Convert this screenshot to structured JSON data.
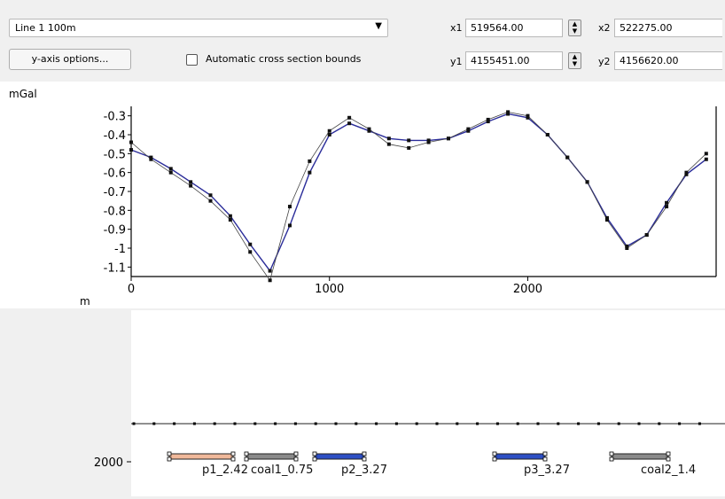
{
  "line_select": {
    "value": "Line 1 100m"
  },
  "yaxis_button": {
    "label": "y-axis options..."
  },
  "auto_bounds": {
    "label": "Automatic cross section bounds",
    "checked": false
  },
  "coords": {
    "x1": {
      "label": "x1",
      "value": "519564.00"
    },
    "x2": {
      "label": "x2",
      "value": "522275.00"
    },
    "y1": {
      "label": "y1",
      "value": "4155451.00"
    },
    "y2": {
      "label": "y2",
      "value": "4156620.00"
    }
  },
  "gravity_plot": {
    "ylabel": "mGal",
    "xlabel": "m",
    "ytick_labels": [
      "-0.3",
      "-0.4",
      "-0.5",
      "-0.6",
      "-0.7",
      "-0.8",
      "-0.9",
      "-1",
      "-1.1"
    ],
    "xtick_labels": [
      "0",
      "1000",
      "2000"
    ],
    "colors": {
      "modeled": "#2b2d9a",
      "observed": "#444444",
      "points": "#111111"
    }
  },
  "section": {
    "ytick_label": "2000",
    "bodies": [
      {
        "label": "p1_2.42",
        "color": "#f0b89a"
      },
      {
        "label": "coal1_0.75",
        "color": "#8a8a8a"
      },
      {
        "label": "p2_3.27",
        "color": "#2d4fc4"
      },
      {
        "label": "p3_3.27",
        "color": "#2d4fc4"
      },
      {
        "label": "coal2_1.4",
        "color": "#8a8a8a"
      }
    ]
  },
  "chart_data": {
    "type": "line",
    "title": "",
    "xlabel": "m",
    "ylabel": "mGal",
    "xlim": [
      0,
      2950
    ],
    "ylim": [
      -1.15,
      -0.25
    ],
    "x": [
      0,
      100,
      200,
      300,
      400,
      500,
      600,
      700,
      800,
      900,
      1000,
      1100,
      1200,
      1300,
      1400,
      1500,
      1600,
      1700,
      1800,
      1900,
      2000,
      2100,
      2200,
      2300,
      2400,
      2500,
      2600,
      2700,
      2800,
      2900
    ],
    "series": [
      {
        "values": [
          -0.48,
          -0.52,
          -0.58,
          -0.65,
          -0.72,
          -0.83,
          -0.98,
          -1.12,
          -0.88,
          -0.6,
          -0.4,
          -0.34,
          -0.38,
          -0.42,
          -0.43,
          -0.43,
          -0.42,
          -0.38,
          -0.33,
          -0.29,
          -0.31,
          -0.4,
          -0.52,
          -0.65,
          -0.84,
          -0.99,
          -0.93,
          -0.76,
          -0.61,
          -0.53
        ]
      },
      {
        "values": [
          -0.44,
          -0.53,
          -0.6,
          -0.67,
          -0.75,
          -0.85,
          -1.02,
          -1.17,
          -0.78,
          -0.54,
          -0.38,
          -0.31,
          -0.37,
          -0.45,
          -0.47,
          -0.44,
          -0.42,
          -0.37,
          -0.32,
          -0.28,
          -0.3,
          -0.4,
          -0.52,
          -0.65,
          -0.85,
          -1.0,
          -0.93,
          -0.78,
          -0.6,
          -0.5
        ]
      }
    ]
  }
}
